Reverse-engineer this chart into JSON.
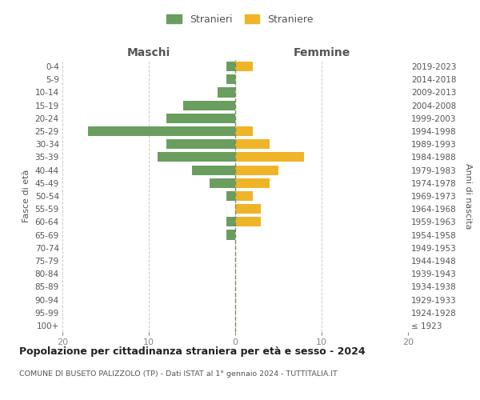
{
  "age_groups": [
    "100+",
    "95-99",
    "90-94",
    "85-89",
    "80-84",
    "75-79",
    "70-74",
    "65-69",
    "60-64",
    "55-59",
    "50-54",
    "45-49",
    "40-44",
    "35-39",
    "30-34",
    "25-29",
    "20-24",
    "15-19",
    "10-14",
    "5-9",
    "0-4"
  ],
  "birth_years": [
    "≤ 1923",
    "1924-1928",
    "1929-1933",
    "1934-1938",
    "1939-1943",
    "1944-1948",
    "1949-1953",
    "1954-1958",
    "1959-1963",
    "1964-1968",
    "1969-1973",
    "1974-1978",
    "1979-1983",
    "1984-1988",
    "1989-1993",
    "1994-1998",
    "1999-2003",
    "2004-2008",
    "2009-2013",
    "2014-2018",
    "2019-2023"
  ],
  "maschi": [
    0,
    0,
    0,
    0,
    0,
    0,
    0,
    1,
    1,
    0,
    1,
    3,
    5,
    9,
    8,
    17,
    8,
    6,
    2,
    1,
    1
  ],
  "femmine": [
    0,
    0,
    0,
    0,
    0,
    0,
    0,
    0,
    3,
    3,
    2,
    4,
    5,
    8,
    4,
    2,
    0,
    0,
    0,
    0,
    2
  ],
  "color_maschi": "#6a9e5e",
  "color_femmine": "#f0b429",
  "legend_maschi": "Stranieri",
  "legend_femmine": "Straniere",
  "xlabel_left": "Maschi",
  "xlabel_right": "Femmine",
  "ylabel_left": "Fasce di età",
  "ylabel_right": "Anni di nascita",
  "title": "Popolazione per cittadinanza straniera per età e sesso - 2024",
  "subtitle": "COMUNE DI BUSETO PALIZZOLO (TP) - Dati ISTAT al 1° gennaio 2024 - TUTTITALIA.IT",
  "xlim": 20,
  "background_color": "#ffffff",
  "grid_color": "#cccccc",
  "center_line_color": "#888866",
  "tick_color": "#888888",
  "label_color": "#555555"
}
